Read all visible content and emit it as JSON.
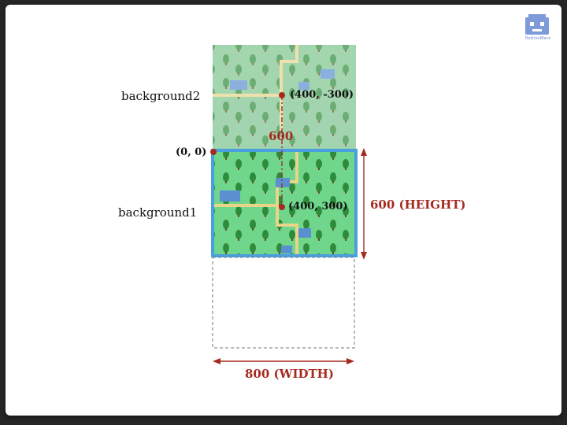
{
  "labels": {
    "background2": "background2",
    "background1": "background1"
  },
  "coords": {
    "origin": "(0, 0)",
    "bg2_center": "(400, -300)",
    "bg1_center": "(400, 300)"
  },
  "dimensions": {
    "gap": "600",
    "height": "600 (HEIGHT)",
    "width": "800 (WIDTH)"
  },
  "logo": {
    "text": "RobloxWare",
    "icon": "robot-face-icon"
  },
  "colors": {
    "accent_red": "#a52a1f",
    "frame_blue": "#4aa0dc",
    "grass": "#6fd68c",
    "grass_faded": "#8dc29a"
  }
}
